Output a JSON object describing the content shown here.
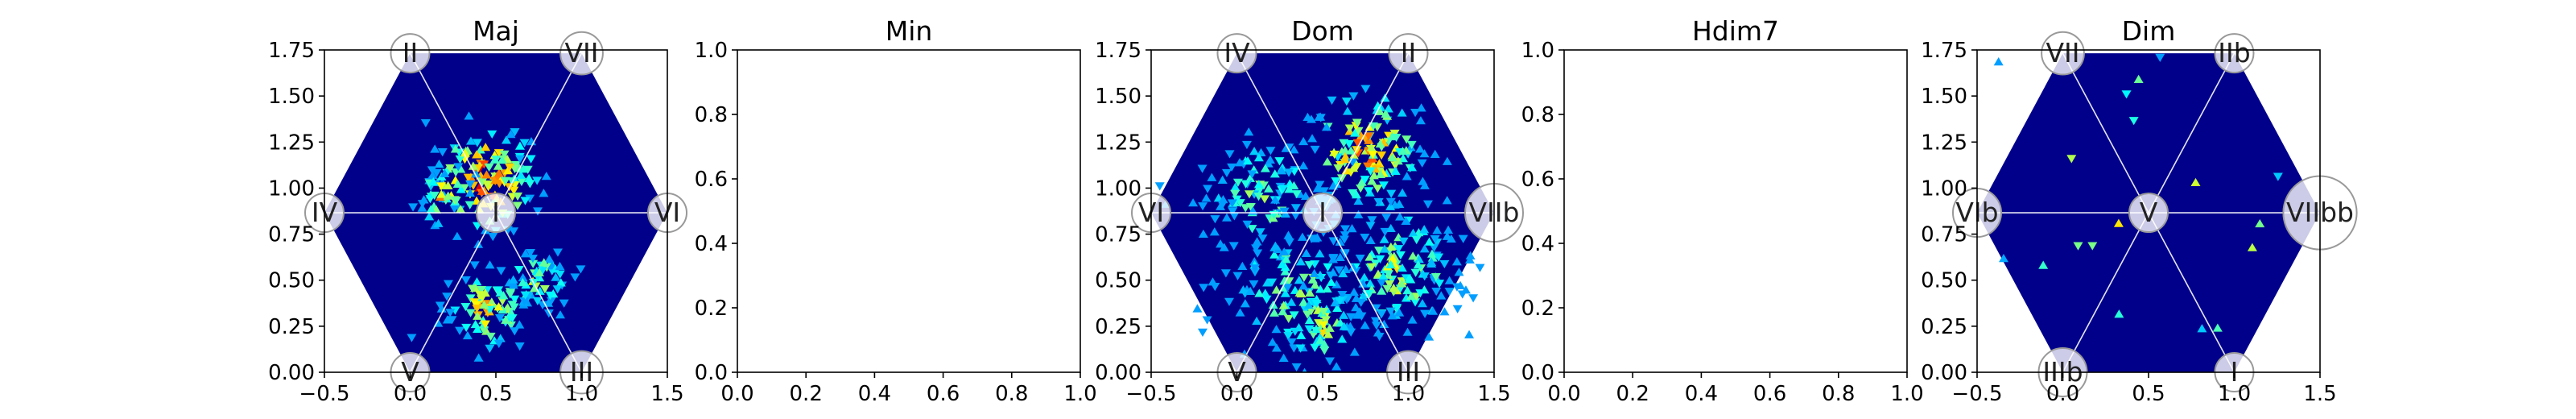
{
  "chart_data": [
    {
      "type": "heatmap",
      "title": "Maj",
      "xlim": [
        -0.5,
        1.5
      ],
      "ylim": [
        0,
        1.75
      ],
      "xticks": [
        "−0.5",
        "0.0",
        "0.5",
        "1.0",
        "1.5"
      ],
      "yticks": [
        "0.00",
        "0.25",
        "0.50",
        "0.75",
        "1.00",
        "1.25",
        "1.50",
        "1.75"
      ],
      "hexagon": true,
      "background_color": "#00008b",
      "center_node": "I",
      "nodes": [
        {
          "label": "II",
          "x": 0.0,
          "y": 1.732,
          "size": 1.0
        },
        {
          "label": "VII",
          "x": 1.0,
          "y": 1.732,
          "size": 1.1
        },
        {
          "label": "IV",
          "x": -0.5,
          "y": 0.866,
          "size": 1.0
        },
        {
          "label": "I",
          "x": 0.5,
          "y": 0.866,
          "size": 1.0
        },
        {
          "label": "VI",
          "x": 1.5,
          "y": 0.866,
          "size": 1.0
        },
        {
          "label": "V",
          "x": 0.0,
          "y": 0.0,
          "size": 1.0
        },
        {
          "label": "III",
          "x": 1.0,
          "y": 0.0,
          "size": 1.1
        }
      ],
      "clusters": [
        {
          "x": 0.45,
          "y": 1.05,
          "spread": 0.17,
          "count": 140,
          "peak": 0.9
        },
        {
          "x": 0.2,
          "y": 0.95,
          "spread": 0.09,
          "count": 35,
          "peak": 0.7
        },
        {
          "x": 0.45,
          "y": 0.35,
          "spread": 0.13,
          "count": 90,
          "peak": 0.7
        },
        {
          "x": 0.75,
          "y": 0.5,
          "spread": 0.1,
          "count": 55,
          "peak": 0.6
        }
      ]
    },
    {
      "type": "heatmap",
      "title": "Min",
      "xlim": [
        0,
        1
      ],
      "ylim": [
        0,
        1
      ],
      "xticks": [
        "0.0",
        "0.2",
        "0.4",
        "0.6",
        "0.8",
        "1.0"
      ],
      "yticks": [
        "0.0",
        "0.2",
        "0.4",
        "0.6",
        "0.8",
        "1.0"
      ],
      "hexagon": false,
      "nodes": [],
      "clusters": []
    },
    {
      "type": "heatmap",
      "title": "Dom",
      "xlim": [
        -0.5,
        1.5
      ],
      "ylim": [
        0,
        1.75
      ],
      "xticks": [
        "−0.5",
        "0.0",
        "0.5",
        "1.0",
        "1.5"
      ],
      "yticks": [
        "0.00",
        "0.25",
        "0.50",
        "0.75",
        "1.00",
        "1.25",
        "1.50",
        "1.75"
      ],
      "hexagon": true,
      "background_color": "#00008b",
      "center_node": "I",
      "nodes": [
        {
          "label": "IV",
          "x": 0.0,
          "y": 1.732,
          "size": 1.0
        },
        {
          "label": "II",
          "x": 1.0,
          "y": 1.732,
          "size": 1.0
        },
        {
          "label": "VI",
          "x": -0.5,
          "y": 0.866,
          "size": 1.0
        },
        {
          "label": "I",
          "x": 0.5,
          "y": 0.866,
          "size": 1.0
        },
        {
          "label": "VIIb",
          "x": 1.5,
          "y": 0.866,
          "size": 1.5
        },
        {
          "label": "V",
          "x": 0.0,
          "y": 0.0,
          "size": 1.0
        },
        {
          "label": "III",
          "x": 1.0,
          "y": 0.0,
          "size": 1.1
        }
      ],
      "clusters": [
        {
          "x": 0.75,
          "y": 1.2,
          "spread": 0.2,
          "count": 160,
          "peak": 0.75
        },
        {
          "x": 0.95,
          "y": 0.55,
          "spread": 0.2,
          "count": 160,
          "peak": 0.6
        },
        {
          "x": 0.15,
          "y": 0.95,
          "spread": 0.2,
          "count": 120,
          "peak": 0.5
        },
        {
          "x": 0.35,
          "y": 0.45,
          "spread": 0.22,
          "count": 120,
          "peak": 0.55
        },
        {
          "x": 0.5,
          "y": 0.25,
          "spread": 0.12,
          "count": 60,
          "peak": 0.6
        }
      ]
    },
    {
      "type": "heatmap",
      "title": "Hdim7",
      "xlim": [
        0,
        1
      ],
      "ylim": [
        0,
        1
      ],
      "xticks": [
        "0.0",
        "0.2",
        "0.4",
        "0.6",
        "0.8",
        "1.0"
      ],
      "yticks": [
        "0.0",
        "0.2",
        "0.4",
        "0.6",
        "0.8",
        "1.0"
      ],
      "hexagon": false,
      "nodes": [],
      "clusters": []
    },
    {
      "type": "heatmap",
      "title": "Dim",
      "xlim": [
        -0.5,
        1.5
      ],
      "ylim": [
        0,
        1.75
      ],
      "xticks": [
        "−0.5",
        "0.0",
        "0.5",
        "1.0",
        "1.5"
      ],
      "yticks": [
        "0.00",
        "0.25",
        "0.50",
        "0.75",
        "1.00",
        "1.25",
        "1.50",
        "1.75"
      ],
      "hexagon": true,
      "background_color": "#00008b",
      "center_node": "V",
      "nodes": [
        {
          "label": "VII",
          "x": 0.0,
          "y": 1.732,
          "size": 1.1
        },
        {
          "label": "IIb",
          "x": 1.0,
          "y": 1.732,
          "size": 1.0
        },
        {
          "label": "VIb",
          "x": -0.5,
          "y": 0.866,
          "size": 1.25
        },
        {
          "label": "V",
          "x": 0.5,
          "y": 0.866,
          "size": 1.0
        },
        {
          "label": "VIIbb",
          "x": 1.5,
          "y": 0.866,
          "size": 1.9
        },
        {
          "label": "IIIb",
          "x": 0.0,
          "y": 0.0,
          "size": 1.25
        },
        {
          "label": "I",
          "x": 1.0,
          "y": 0.0,
          "size": 1.0
        }
      ],
      "clusters": [
        {
          "x": 0.5,
          "y": 0.9,
          "spread": 0.55,
          "count": 22,
          "peak": 0.85
        }
      ]
    }
  ]
}
